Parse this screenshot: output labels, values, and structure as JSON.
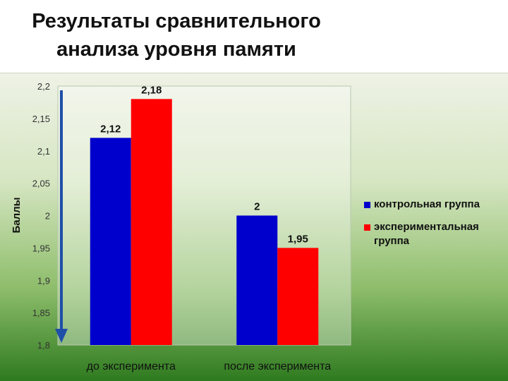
{
  "title": {
    "line1": "Результаты сравнительного",
    "line2": "анализа  уровня памяти"
  },
  "chart_data": {
    "type": "bar",
    "categories": [
      "до эксперимента",
      "после эксперимента"
    ],
    "series": [
      {
        "name": "контрольная группа",
        "values": [
          2.12,
          2.0
        ],
        "labels": [
          "2,12",
          "2"
        ],
        "color": "#0000cc"
      },
      {
        "name": "экспериментальная группа",
        "values": [
          2.18,
          1.95
        ],
        "labels": [
          "2,18",
          "1,95"
        ],
        "color": "#ff0000"
      }
    ],
    "ylabel": "Баллы",
    "ylim": [
      1.8,
      2.2
    ],
    "yticks": [
      "1,8",
      "1,85",
      "1,9",
      "1,95",
      "2",
      "2,05",
      "2,1",
      "2,15",
      "2,2"
    ],
    "legend_position": "right",
    "arrow_color": "#1f4fa8"
  }
}
